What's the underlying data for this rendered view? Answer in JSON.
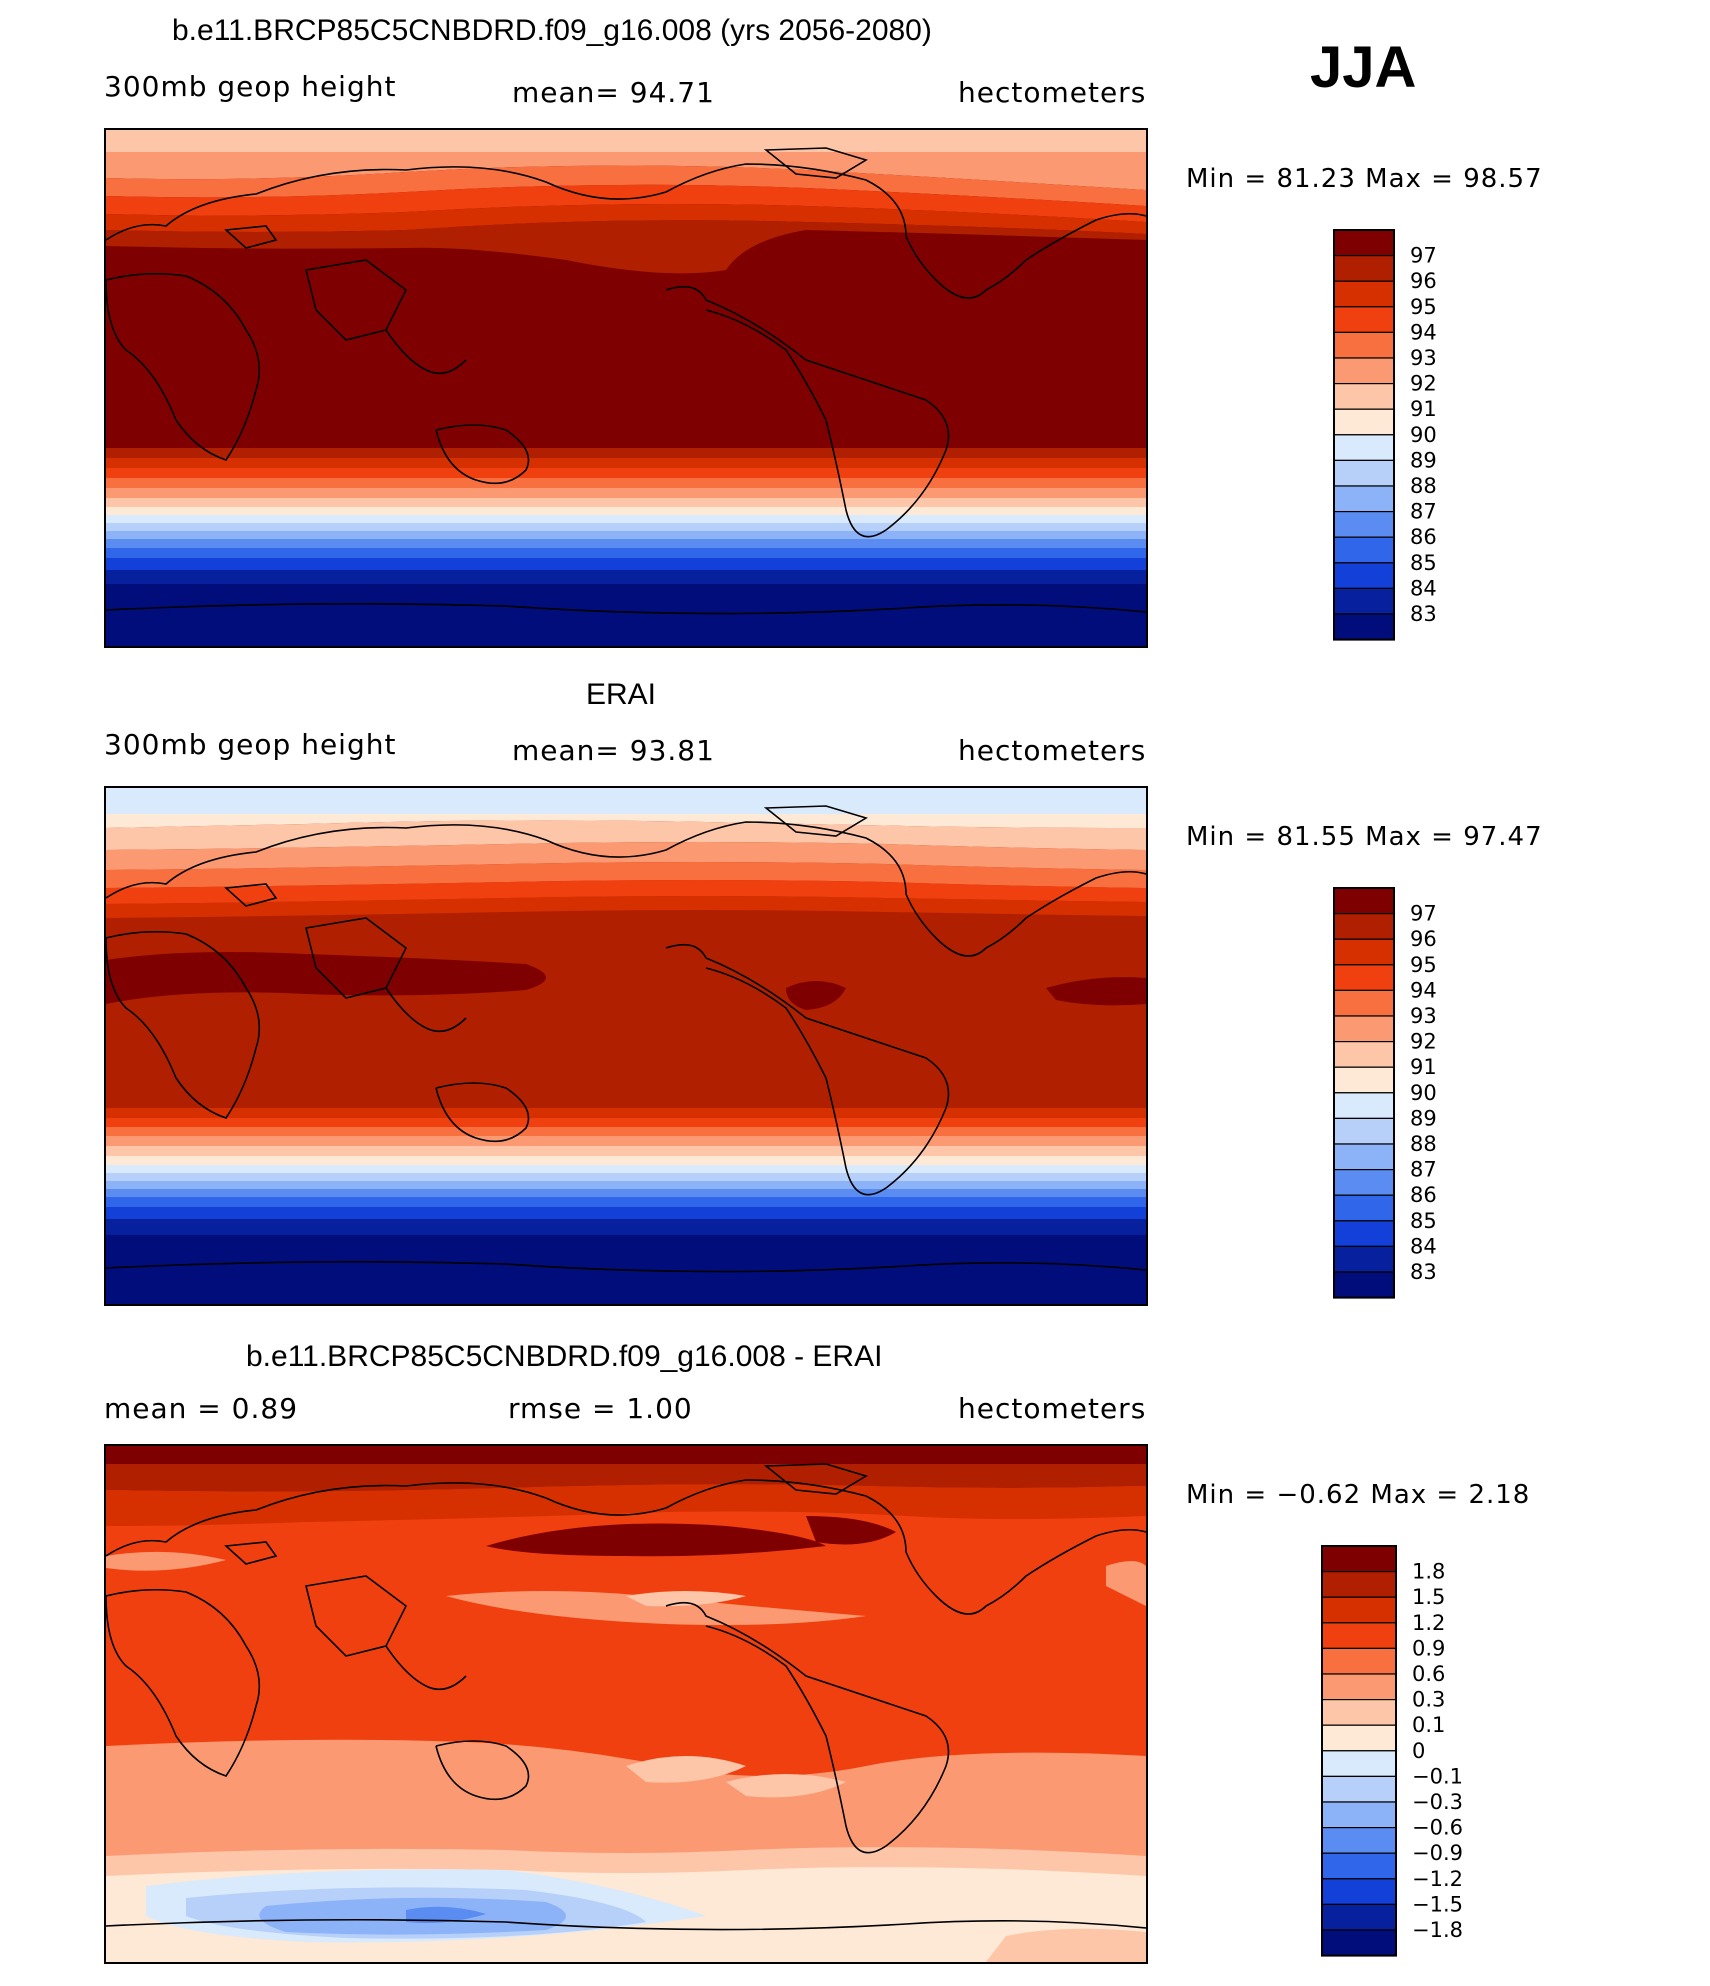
{
  "season": "JJA",
  "panels": [
    {
      "title": "b.e11.BRCP85C5CNBDRD.f09_g16.008 (yrs 2056-2080)",
      "left": "300mb  geop  height",
      "center": "mean=   94.71",
      "right": "hectometers",
      "minmax": "Min  =    81.23  Max  =    98.57",
      "legend": [
        "97",
        "96",
        "95",
        "94",
        "93",
        "92",
        "91",
        "90",
        "89",
        "88",
        "87",
        "86",
        "85",
        "84",
        "83"
      ]
    },
    {
      "title": "ERAI",
      "left": "300mb  geop  height",
      "center": "mean=   93.81",
      "right": "hectometers",
      "minmax": "Min  =    81.55  Max  =    97.47",
      "legend": [
        "97",
        "96",
        "95",
        "94",
        "93",
        "92",
        "91",
        "90",
        "89",
        "88",
        "87",
        "86",
        "85",
        "84",
        "83"
      ]
    },
    {
      "title": "b.e11.BRCP85C5CNBDRD.f09_g16.008 - ERAI",
      "left": "mean  =     0.89",
      "center": "rmse  =     1.00",
      "right": "hectometers",
      "minmax": "Min  =   −0.62  Max  =     2.18",
      "legend": [
        "1.8",
        "1.5",
        "1.2",
        "0.9",
        "0.6",
        "0.3",
        "0.1",
        "0",
        "−0.1",
        "−0.3",
        "−0.6",
        "−0.9",
        "−1.2",
        "−1.5",
        "−1.8"
      ]
    }
  ],
  "palette": [
    "#7f0000",
    "#b02000",
    "#d63000",
    "#f04010",
    "#f87040",
    "#fb9a72",
    "#fdc6a8",
    "#fee8d6",
    "#d8eafb",
    "#b6d0fa",
    "#8cb2f7",
    "#5b8cf2",
    "#2f66ea",
    "#1240d8",
    "#06209e",
    "#000d7a"
  ]
}
